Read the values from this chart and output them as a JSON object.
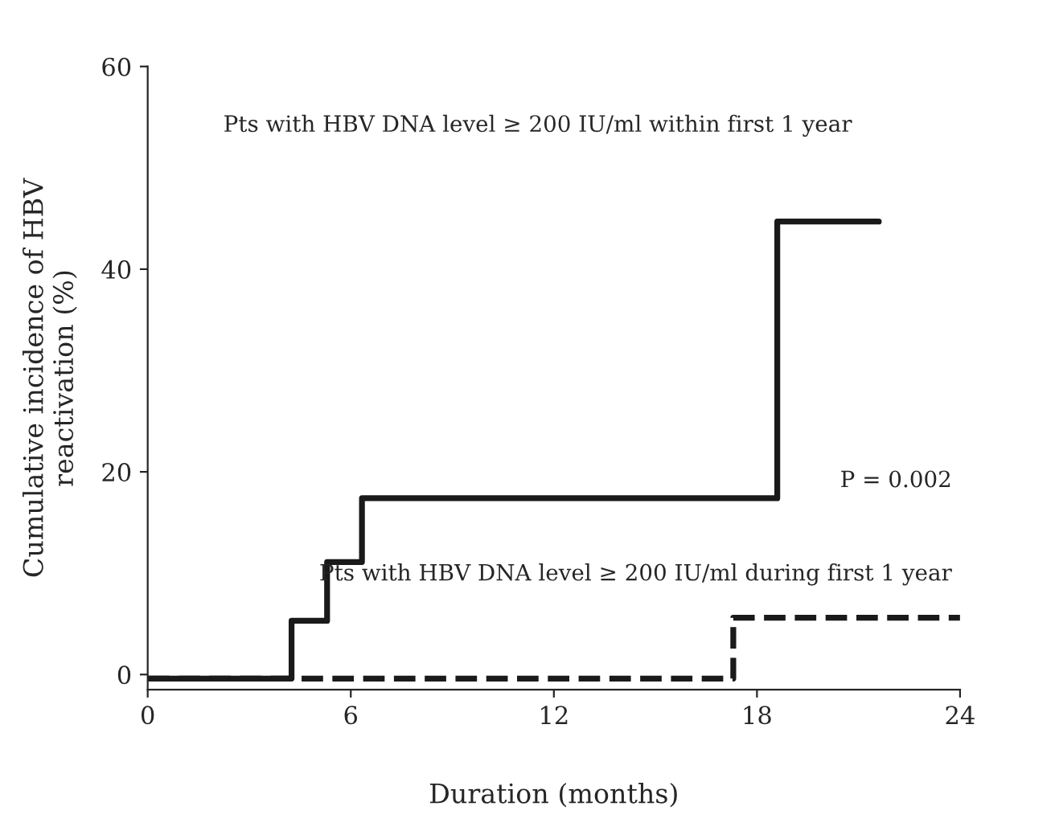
{
  "chart_data": {
    "type": "step",
    "xlabel": "Duration (months)",
    "ylabel": "Cumulative incidence of HBV\nreactivation (%)",
    "xlim": [
      0,
      24
    ],
    "ylim": [
      -1.5,
      60
    ],
    "xticks": [
      0,
      6,
      12,
      18,
      24
    ],
    "yticks": [
      0,
      20,
      40,
      60
    ],
    "grid": false,
    "legend": false,
    "marker": "none",
    "series": [
      {
        "color": "#1a1a1a",
        "line_style": "solid",
        "x": [
          0,
          4.25,
          5.3,
          6.33,
          18.6,
          21.6
        ],
        "values": [
          -0.4,
          5.3,
          11.1,
          17.4,
          44.7,
          44.7
        ]
      },
      {
        "color": "#1a1a1a",
        "line_style": "dashed",
        "x": [
          0,
          17.3,
          24
        ],
        "values": [
          -0.4,
          5.6,
          5.6
        ]
      }
    ],
    "annotations": [
      "Pts with HBV DNA level ≥ 200 IU/ml within first 1 year",
      "Pts with HBV DNA level ≥ 200 IU/ml during first 1 year",
      "P = 0.002"
    ]
  }
}
